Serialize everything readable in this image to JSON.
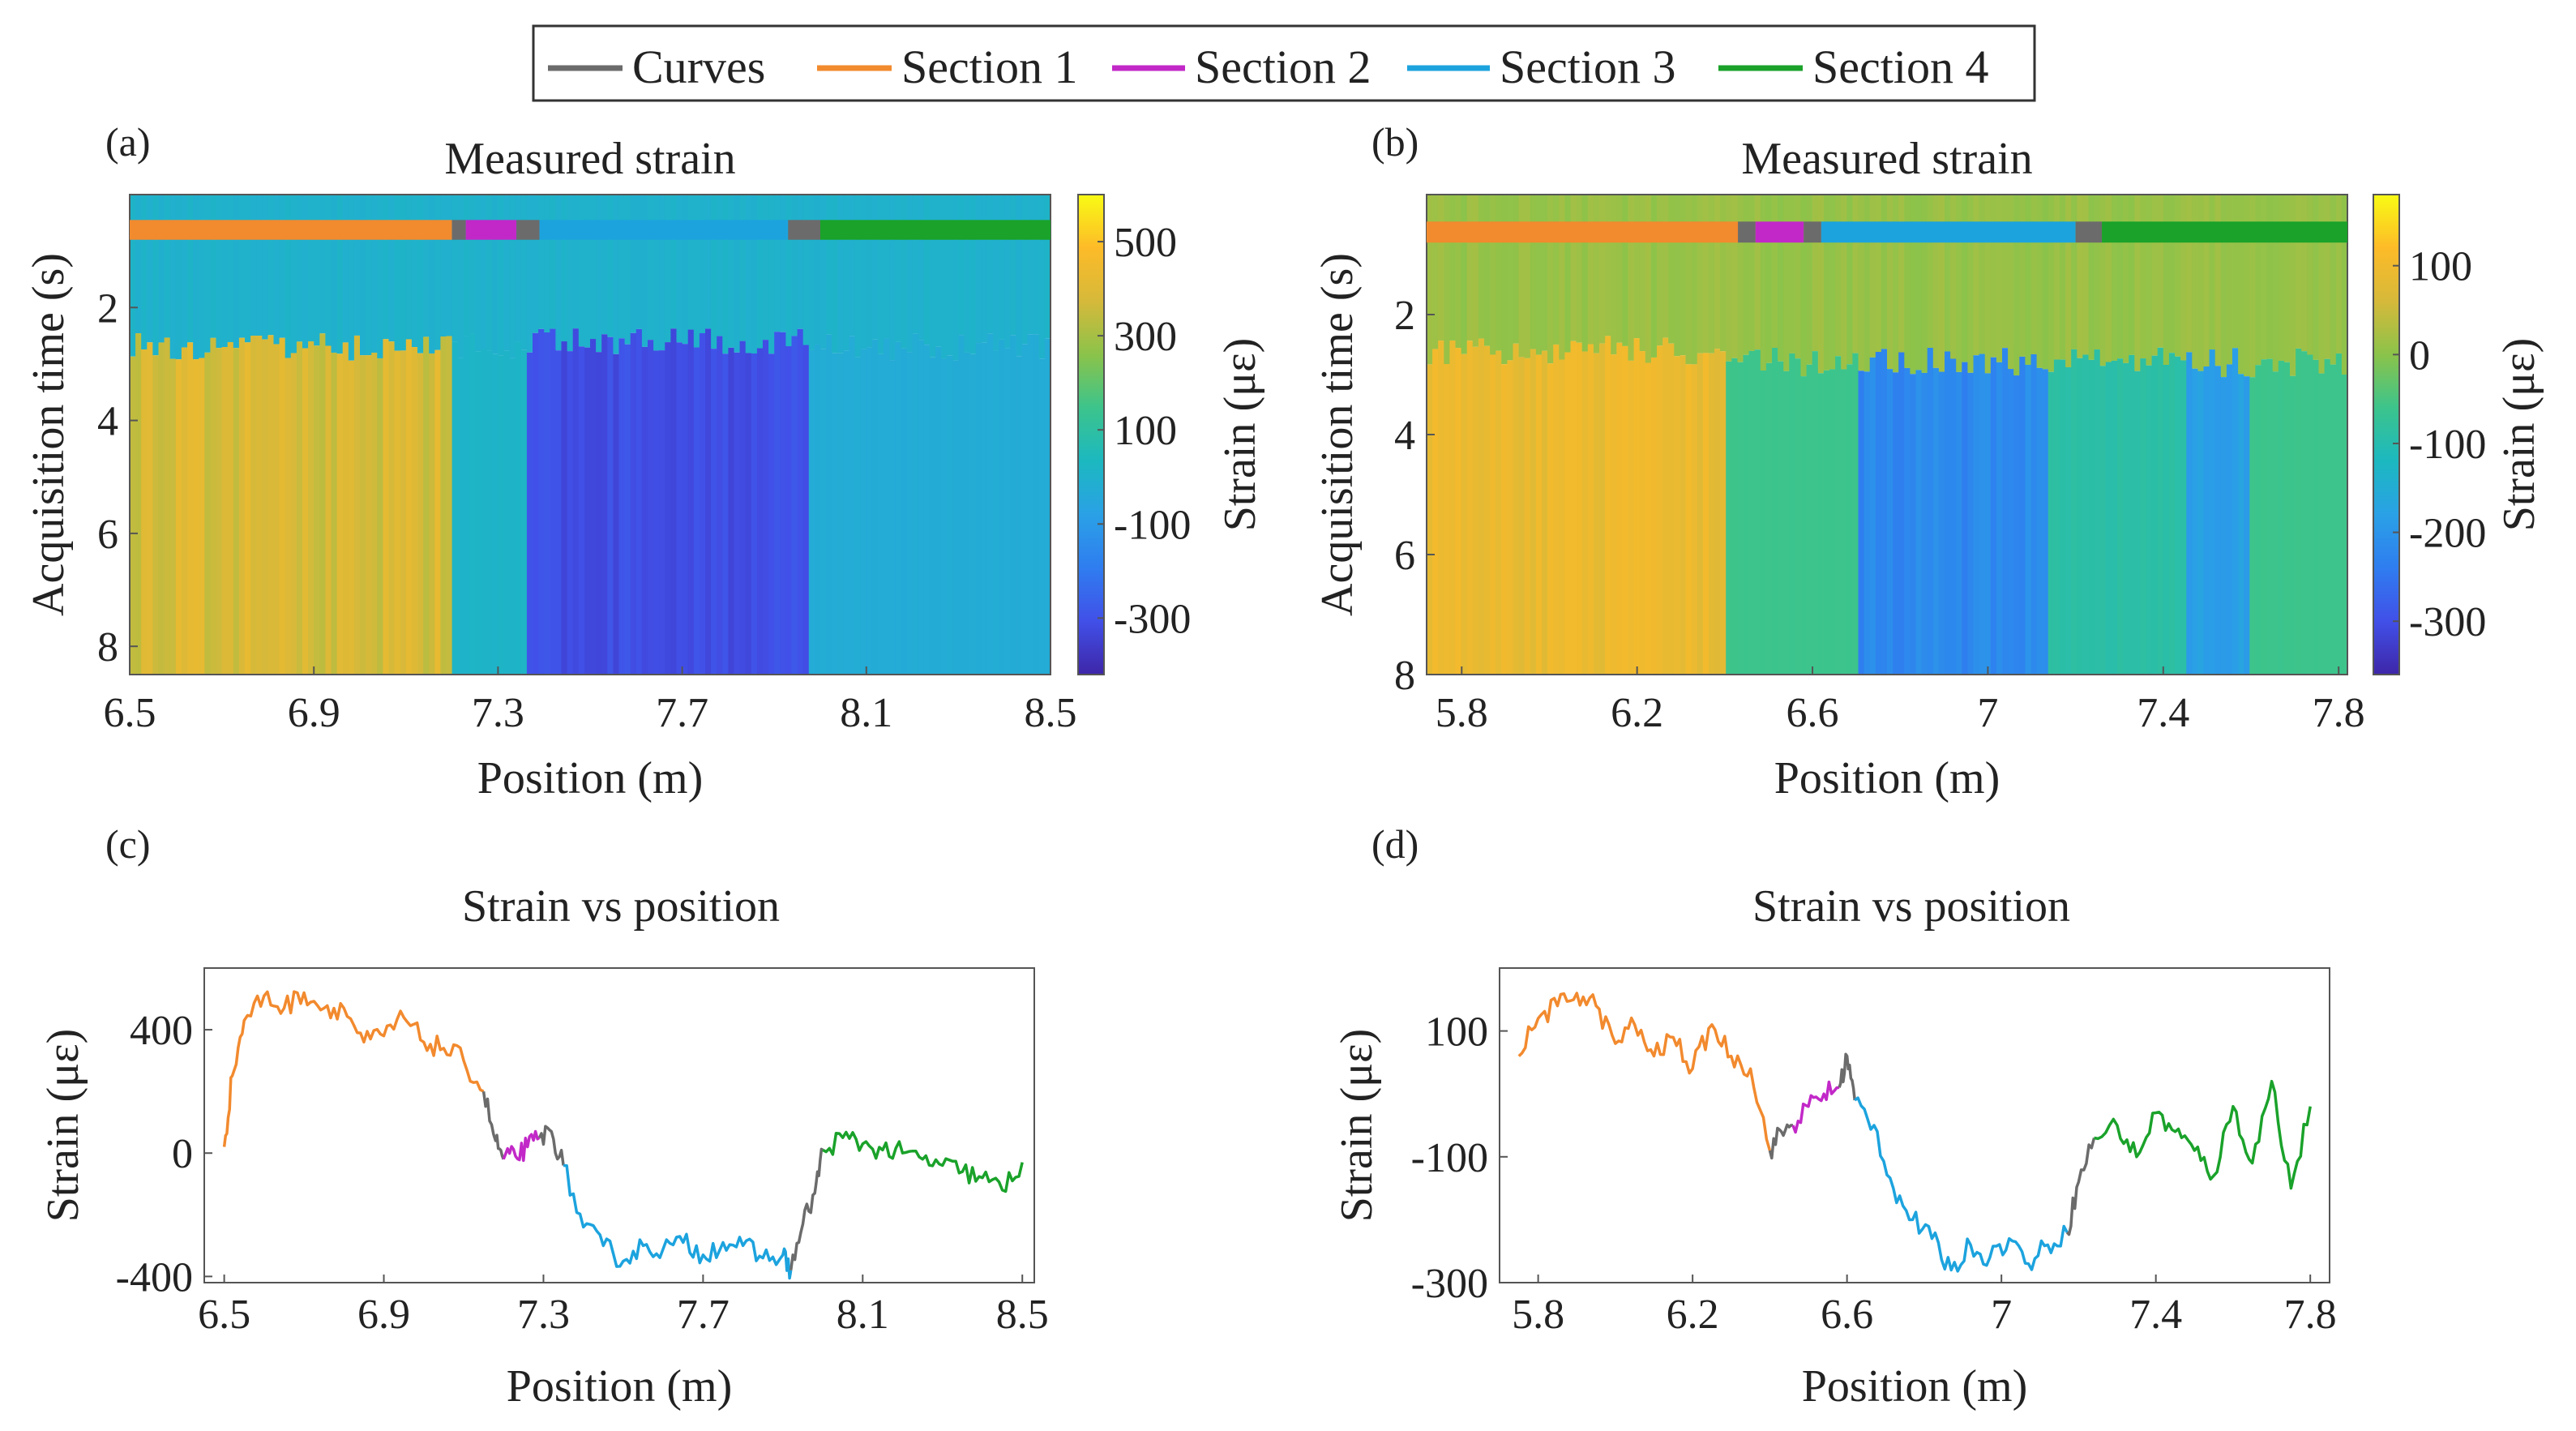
{
  "legend": {
    "items": [
      {
        "label": "Curves",
        "color": "#6b6b6b"
      },
      {
        "label": "Section 1",
        "color": "#f28a2e"
      },
      {
        "label": "Section 2",
        "color": "#c228c8"
      },
      {
        "label": "Section 3",
        "color": "#1ca3de"
      },
      {
        "label": "Section 4",
        "color": "#1aa22a"
      }
    ]
  },
  "colormap": [
    "#3e26a8",
    "#4150e8",
    "#2f7df0",
    "#2aa1e6",
    "#1cb8c0",
    "#3cc48c",
    "#8bc34a",
    "#d6b93a",
    "#fdbb28",
    "#f9fb14"
  ],
  "chart_data": [
    {
      "id": "a",
      "type": "heatmap",
      "panel_label": "(a)",
      "title": "Measured strain",
      "xlabel": "Position (m)",
      "ylabel": "Acquisition time (s)",
      "colorbar_label": "Strain (με)",
      "xlim": [
        6.5,
        8.5
      ],
      "ylim": [
        0,
        8.5
      ],
      "clim": [
        -420,
        600
      ],
      "x_ticks": [
        6.5,
        6.9,
        7.3,
        7.7,
        8.1,
        8.5
      ],
      "x_tick_labels": [
        "6.5",
        "6.9",
        "7.3",
        "7.7",
        "8.1",
        "8.5"
      ],
      "y_ticks": [
        2,
        4,
        6,
        8
      ],
      "y_tick_labels": [
        "2",
        "4",
        "6",
        "8"
      ],
      "colorbar_ticks": [
        500,
        300,
        100,
        -100,
        -300
      ],
      "colorbar_tick_labels": [
        "500",
        "300",
        "100",
        "-100",
        "-300"
      ],
      "section_bar": [
        {
          "section": "Section 1",
          "x0": 6.5,
          "x1": 7.2
        },
        {
          "section": "Curves",
          "x0": 7.2,
          "x1": 7.23
        },
        {
          "section": "Section 2",
          "x0": 7.23,
          "x1": 7.34
        },
        {
          "section": "Curves",
          "x0": 7.34,
          "x1": 7.39
        },
        {
          "section": "Section 3",
          "x0": 7.39,
          "x1": 7.93
        },
        {
          "section": "Curves",
          "x0": 7.93,
          "x1": 8.0
        },
        {
          "section": "Section 4",
          "x0": 8.0,
          "x1": 8.5
        }
      ],
      "regions": [
        {
          "x0": 6.5,
          "x1": 7.2,
          "value_before": 0,
          "value_after": 380,
          "t_onset": 2.7
        },
        {
          "x0": 7.2,
          "x1": 7.36,
          "value_before": 0,
          "value_after": 10,
          "t_onset": 2.7
        },
        {
          "x0": 7.36,
          "x1": 7.97,
          "value_before": 0,
          "value_after": -310,
          "t_onset": 2.6
        },
        {
          "x0": 7.97,
          "x1": 8.5,
          "value_before": 0,
          "value_after": -30,
          "t_onset": 2.7
        }
      ]
    },
    {
      "id": "b",
      "type": "heatmap",
      "panel_label": "(b)",
      "title": "Measured strain",
      "xlabel": "Position (m)",
      "ylabel": "Acquisition time (s)",
      "colorbar_label": "Strain (με)",
      "xlim": [
        5.72,
        7.82
      ],
      "ylim": [
        0,
        8
      ],
      "clim": [
        -360,
        180
      ],
      "x_ticks": [
        5.8,
        6.2,
        6.6,
        7.0,
        7.4,
        7.8
      ],
      "x_tick_labels": [
        "5.8",
        "6.2",
        "6.6",
        "7",
        "7.4",
        "7.8"
      ],
      "y_ticks": [
        2,
        4,
        6,
        8
      ],
      "y_tick_labels": [
        "2",
        "4",
        "6",
        "8"
      ],
      "colorbar_ticks": [
        100,
        0,
        -100,
        -200,
        -300
      ],
      "colorbar_tick_labels": [
        "100",
        "0",
        "-100",
        "-200",
        "-300"
      ],
      "section_bar": [
        {
          "section": "Section 1",
          "x0": 5.72,
          "x1": 6.43
        },
        {
          "section": "Curves",
          "x0": 6.43,
          "x1": 6.47
        },
        {
          "section": "Section 2",
          "x0": 6.47,
          "x1": 6.58
        },
        {
          "section": "Curves",
          "x0": 6.58,
          "x1": 6.62
        },
        {
          "section": "Section 3",
          "x0": 6.62,
          "x1": 7.2
        },
        {
          "section": "Curves",
          "x0": 7.2,
          "x1": 7.26
        },
        {
          "section": "Section 4",
          "x0": 7.26,
          "x1": 7.82
        }
      ],
      "regions": [
        {
          "x0": 5.72,
          "x1": 6.4,
          "value_before": 10,
          "value_after": 90,
          "t_onset": 2.6
        },
        {
          "x0": 6.4,
          "x1": 6.7,
          "value_before": 10,
          "value_after": -60,
          "t_onset": 2.8
        },
        {
          "x0": 6.7,
          "x1": 7.14,
          "value_before": 10,
          "value_after": -220,
          "t_onset": 2.8
        },
        {
          "x0": 7.14,
          "x1": 7.45,
          "value_before": 10,
          "value_after": -90,
          "t_onset": 2.8
        },
        {
          "x0": 7.45,
          "x1": 7.6,
          "value_before": 10,
          "value_after": -180,
          "t_onset": 2.8
        },
        {
          "x0": 7.6,
          "x1": 7.82,
          "value_before": 10,
          "value_after": -60,
          "t_onset": 2.8
        }
      ]
    },
    {
      "id": "c",
      "type": "line",
      "panel_label": "(c)",
      "title": "Strain vs position",
      "xlabel": "Position (m)",
      "ylabel": "Strain (με)",
      "xlim": [
        6.45,
        8.53
      ],
      "ylim": [
        -420,
        600
      ],
      "x_ticks": [
        6.5,
        6.9,
        7.3,
        7.7,
        8.1,
        8.5
      ],
      "x_tick_labels": [
        "6.5",
        "6.9",
        "7.3",
        "7.7",
        "8.1",
        "8.5"
      ],
      "y_ticks": [
        400,
        0,
        -400
      ],
      "y_tick_labels": [
        "400",
        "0",
        "-400"
      ],
      "series": [
        {
          "name": "Section 1",
          "x": [
            6.5,
            6.52,
            6.55,
            6.6,
            6.65,
            6.7,
            6.75,
            6.8,
            6.85,
            6.9,
            6.95,
            7.0,
            7.05,
            7.1,
            7.15
          ],
          "y": [
            20,
            250,
            430,
            510,
            470,
            520,
            470,
            470,
            360,
            380,
            440,
            360,
            340,
            300,
            200
          ]
        },
        {
          "name": "Curves",
          "x": [
            7.15,
            7.18,
            7.2
          ],
          "y": [
            200,
            40,
            -20
          ]
        },
        {
          "name": "Section 2",
          "x": [
            7.2,
            7.23,
            7.26,
            7.29
          ],
          "y": [
            -20,
            -10,
            20,
            50
          ]
        },
        {
          "name": "Curves",
          "x": [
            7.29,
            7.32,
            7.35
          ],
          "y": [
            50,
            70,
            -40
          ]
        },
        {
          "name": "Section 3",
          "x": [
            7.35,
            7.4,
            7.45,
            7.5,
            7.55,
            7.6,
            7.65,
            7.7,
            7.75,
            7.8,
            7.85,
            7.9,
            7.92
          ],
          "y": [
            -40,
            -240,
            -300,
            -350,
            -300,
            -310,
            -290,
            -330,
            -290,
            -300,
            -340,
            -330,
            -380
          ]
        },
        {
          "name": "Curves",
          "x": [
            7.92,
            7.95,
            7.98,
            8.0
          ],
          "y": [
            -380,
            -230,
            -130,
            10
          ]
        },
        {
          "name": "Section 4",
          "x": [
            8.0,
            8.05,
            8.1,
            8.15,
            8.2,
            8.25,
            8.3,
            8.35,
            8.4,
            8.45,
            8.5
          ],
          "y": [
            10,
            50,
            30,
            10,
            0,
            -20,
            -40,
            -60,
            -80,
            -120,
            -30
          ]
        }
      ]
    },
    {
      "id": "d",
      "type": "line",
      "panel_label": "(d)",
      "title": "Strain vs position",
      "xlabel": "Position (m)",
      "ylabel": "Strain (με)",
      "xlim": [
        5.7,
        7.85
      ],
      "ylim": [
        -300,
        200
      ],
      "x_ticks": [
        5.8,
        6.2,
        6.6,
        7.0,
        7.4,
        7.8
      ],
      "x_tick_labels": [
        "5.8",
        "6.2",
        "6.6",
        "7",
        "7.4",
        "7.8"
      ],
      "y_ticks": [
        100,
        -100,
        -300
      ],
      "y_tick_labels": [
        "100",
        "-100",
        "-300"
      ],
      "series": [
        {
          "name": "Section 1",
          "x": [
            5.75,
            5.8,
            5.85,
            5.9,
            5.95,
            6.0,
            6.05,
            6.1,
            6.15,
            6.2,
            6.25,
            6.3,
            6.35,
            6.4
          ],
          "y": [
            60,
            120,
            140,
            160,
            140,
            80,
            110,
            60,
            90,
            40,
            110,
            60,
            40,
            -90
          ]
        },
        {
          "name": "Curves",
          "x": [
            6.4,
            6.43,
            6.46
          ],
          "y": [
            -90,
            -60,
            -50
          ]
        },
        {
          "name": "Section 2",
          "x": [
            6.46,
            6.5,
            6.54,
            6.58
          ],
          "y": [
            -50,
            -20,
            0,
            10
          ]
        },
        {
          "name": "Curves",
          "x": [
            6.58,
            6.6,
            6.62
          ],
          "y": [
            10,
            60,
            -10
          ]
        },
        {
          "name": "Section 3",
          "x": [
            6.62,
            6.67,
            6.72,
            6.77,
            6.82,
            6.87,
            6.92,
            6.97,
            7.02,
            7.07,
            7.12,
            7.17
          ],
          "y": [
            -10,
            -50,
            -150,
            -200,
            -230,
            -280,
            -240,
            -260,
            -230,
            -270,
            -240,
            -220
          ]
        },
        {
          "name": "Curves",
          "x": [
            7.17,
            7.2,
            7.24
          ],
          "y": [
            -220,
            -140,
            -70
          ]
        },
        {
          "name": "Section 4",
          "x": [
            7.24,
            7.3,
            7.35,
            7.4,
            7.45,
            7.5,
            7.55,
            7.6,
            7.65,
            7.7,
            7.75,
            7.8
          ],
          "y": [
            -70,
            -50,
            -100,
            -30,
            -60,
            -90,
            -130,
            -20,
            -110,
            20,
            -150,
            -20
          ]
        }
      ]
    }
  ]
}
